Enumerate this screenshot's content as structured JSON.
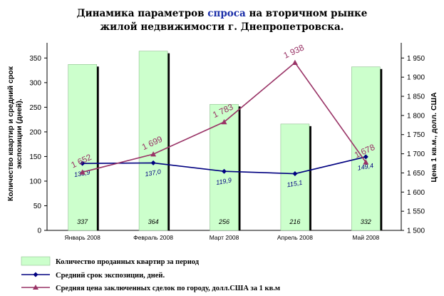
{
  "title": {
    "line1_before": "Динамика параметров ",
    "line1_accent": "спроса",
    "line1_after": " на вторичном рынке",
    "line2": "жилой недвижимости г. Днепропетровска."
  },
  "colors": {
    "bar_fill": "#ccffcc",
    "bar_border": "#8fbf8f",
    "bar_shadow": "#000000",
    "blue_line": "#000080",
    "purple_line": "#993366",
    "title_accent": "#1a2ea8"
  },
  "chart_data": {
    "type": "bar+line",
    "categories": [
      "Январь 2008",
      "Февраль 2008",
      "Март 2008",
      "Апрель 2008",
      "Май 2008"
    ],
    "series": [
      {
        "name": "Количество проданных квартир за период",
        "type": "bar",
        "axis": "left",
        "values": [
          337,
          364,
          256,
          216,
          332
        ],
        "labels": [
          "337",
          "364",
          "256",
          "216",
          "332"
        ]
      },
      {
        "name": "Средний срок экспозиции, дней.",
        "type": "line",
        "axis": "left",
        "marker": "diamond",
        "values": [
          135.9,
          137.0,
          119.9,
          115.1,
          149.4
        ],
        "labels": [
          "135,9",
          "137,0",
          "119,9",
          "115,1",
          "149,4"
        ]
      },
      {
        "name": "Средняя цена заключенных сделок по городу, долл.США за 1 кв.м",
        "type": "line",
        "axis": "right",
        "marker": "triangle",
        "values": [
          1652,
          1699,
          1783,
          1938,
          1678
        ],
        "labels": [
          "1 652",
          "1 699",
          "1 783",
          "1 938",
          "1 678"
        ]
      }
    ],
    "y_left": {
      "label": "Количество квартир и средний срок экспозиции (дней).",
      "min": 0,
      "max": 350,
      "step": 50,
      "ticks": [
        "0",
        "50",
        "100",
        "150",
        "200",
        "250",
        "300",
        "350"
      ]
    },
    "y_right": {
      "label": "Цена 1 кв.м., долл. США",
      "min": 1500,
      "max": 1950,
      "step": 50,
      "ticks": [
        "1 500",
        "1 550",
        "1 600",
        "1 650",
        "1 700",
        "1 750",
        "1 800",
        "1 850",
        "1 900",
        "1 950"
      ]
    },
    "grid": false,
    "legend_position": "bottom"
  }
}
